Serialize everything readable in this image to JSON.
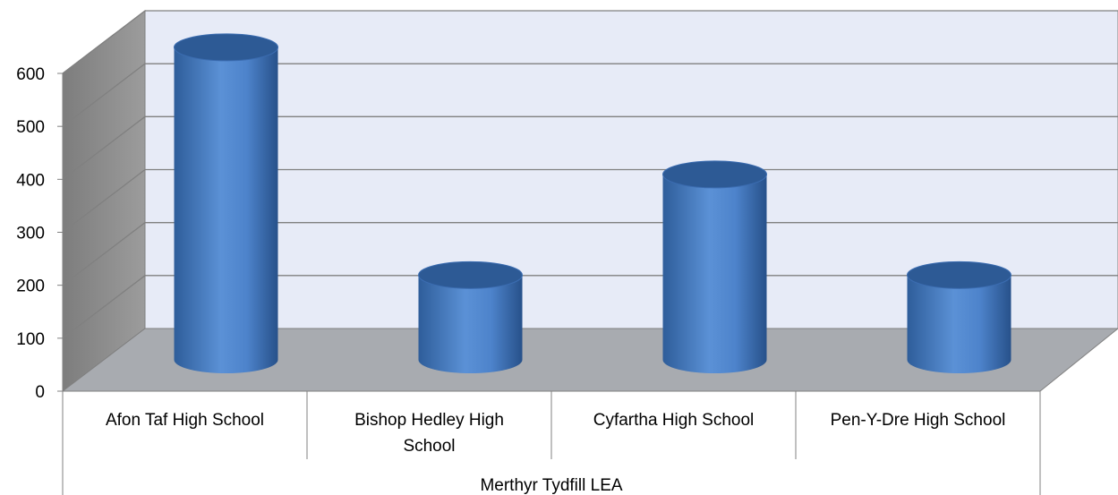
{
  "chart_data": {
    "type": "bar",
    "style": "3d-cylinder",
    "categories": [
      "Afon Taf High School",
      "Bishop Hedley High School",
      "Cyfartha High School",
      "Pen-Y-Dre High School"
    ],
    "category_lines": [
      [
        "Afon Taf High School"
      ],
      [
        "Bishop Hedley High",
        "School"
      ],
      [
        "Cyfartha High School"
      ],
      [
        "Pen-Y-Dre High School"
      ]
    ],
    "group_label": "Merthyr Tydfill LEA",
    "series": [
      {
        "values": [
          590,
          160,
          350,
          160
        ]
      }
    ],
    "ylim": [
      0,
      600
    ],
    "yticks": [
      "0",
      "100",
      "200",
      "300",
      "400",
      "500",
      "600"
    ],
    "grid": true,
    "legend": false,
    "colors": {
      "bar": "#4a7fc4",
      "bar_light": "#5c92d8",
      "bar_dark": "#2d5a95",
      "back_wall": "#e7ebf7",
      "side_wall": "#8c8c8c",
      "floor": "#a8abb0",
      "grid": "#808080"
    }
  }
}
